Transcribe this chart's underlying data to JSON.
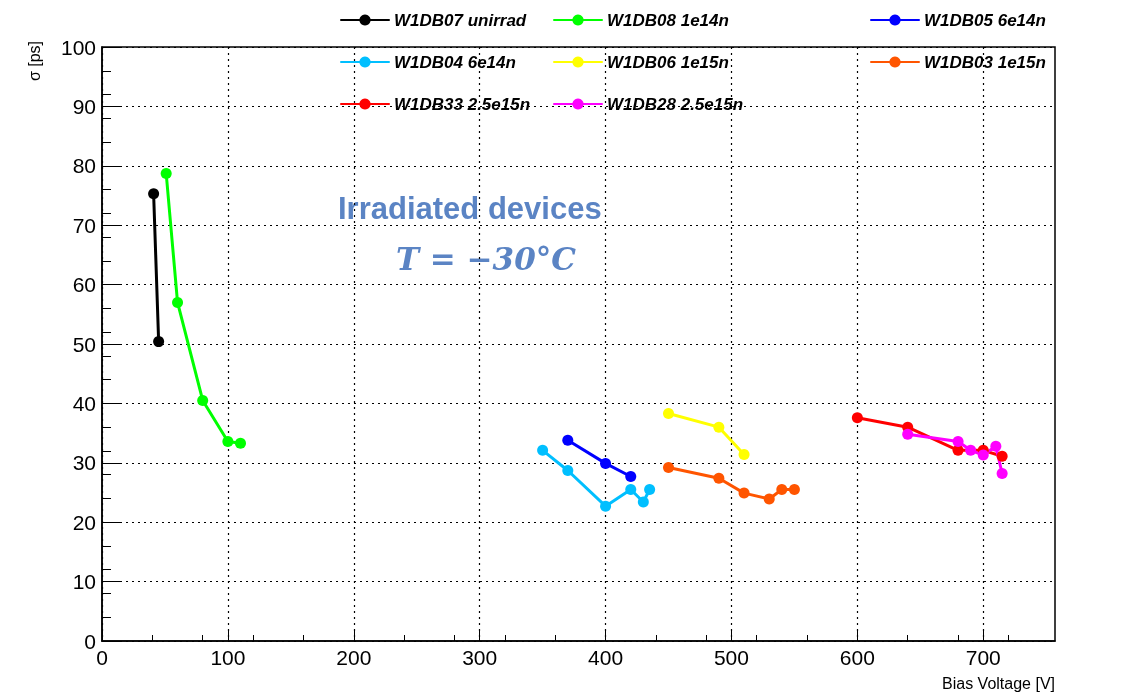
{
  "chart_data": {
    "type": "line",
    "xlabel": "Bias Voltage [V]",
    "ylabel": "σ [ps]",
    "annotations": [
      "Irradiated devices",
      "T = −30°C"
    ],
    "xlim": [
      0,
      757
    ],
    "xticks": [
      0,
      100,
      200,
      300,
      400,
      500,
      600,
      700
    ],
    "ylim": [
      0,
      100
    ],
    "yticks": [
      0,
      10,
      20,
      30,
      40,
      50,
      60,
      70,
      80,
      90,
      100
    ],
    "grid": true,
    "legend": "top right",
    "marker": "circle",
    "line_style": "solid",
    "series": [
      {
        "name": "W1DB07 unirrad",
        "color": "#000000",
        "x": [
          41,
          45
        ],
        "values": [
          75.3,
          50.4
        ]
      },
      {
        "name": "W1DB08 1e14n",
        "color": "#00ff00",
        "x": [
          51,
          60,
          80,
          100,
          110
        ],
        "values": [
          78.7,
          57,
          40.5,
          33.6,
          33.3
        ]
      },
      {
        "name": "W1DB05 6e14n",
        "color": "#0000ff",
        "x": [
          370,
          400,
          420
        ],
        "values": [
          33.8,
          29.9,
          27.7
        ]
      },
      {
        "name": "W1DB04 6e14n",
        "color": "#00bfff",
        "x": [
          350,
          370,
          400,
          420,
          430,
          435
        ],
        "values": [
          32.1,
          28.7,
          22.7,
          25.5,
          23.4,
          25.5
        ]
      },
      {
        "name": "W1DB06 1e15n",
        "color": "#ffff00",
        "x": [
          450,
          490,
          510
        ],
        "values": [
          38.3,
          36,
          31.4
        ]
      },
      {
        "name": "W1DB03 1e15n",
        "color": "#ff5500",
        "x": [
          450,
          490,
          510,
          530,
          540,
          550
        ],
        "values": [
          29.2,
          27.4,
          24.9,
          23.9,
          25.5,
          25.5
        ]
      },
      {
        "name": "W1DB33 2.5e15n",
        "color": "#ff0000",
        "x": [
          600,
          640,
          680,
          700,
          715
        ],
        "values": [
          37.6,
          36,
          32.1,
          32.1,
          31.1
        ]
      },
      {
        "name": "W1DB28 2.5e15n",
        "color": "#ff00ff",
        "x": [
          640,
          680,
          690,
          700,
          710,
          715
        ],
        "values": [
          34.8,
          33.6,
          32.1,
          31.3,
          32.8,
          28.2
        ]
      }
    ]
  }
}
